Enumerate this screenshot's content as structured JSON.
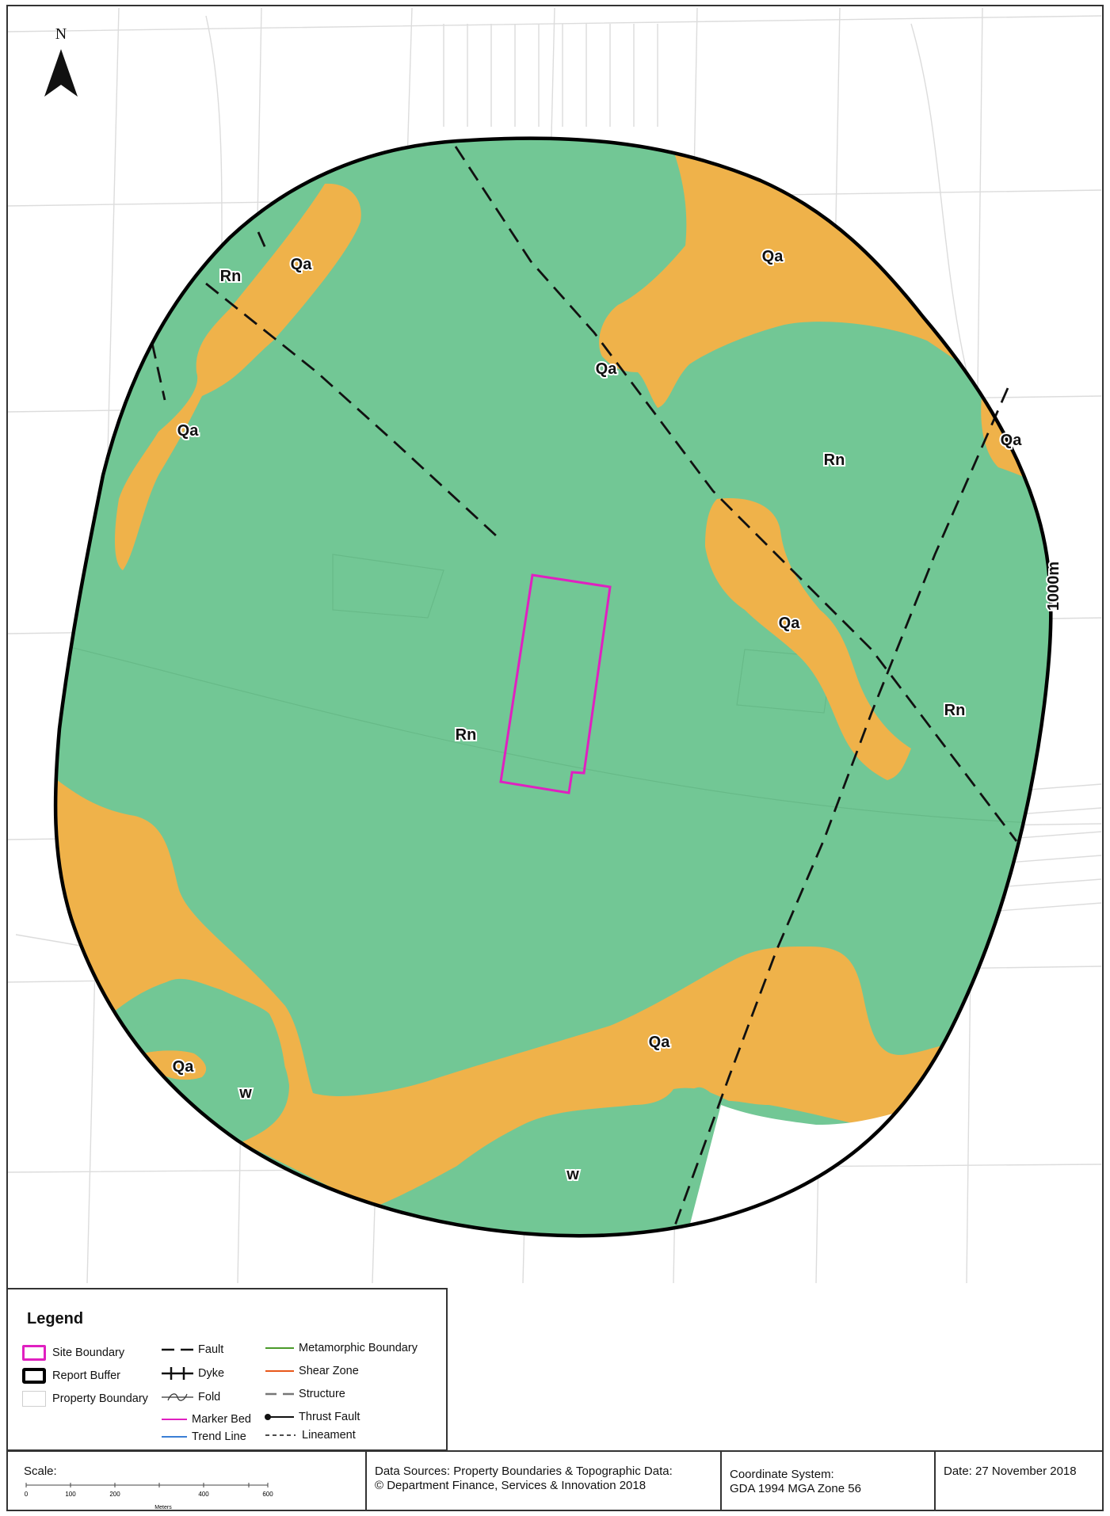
{
  "map": {
    "north_label": "N",
    "buffer_label": "1000m",
    "unit_labels": [
      {
        "id": "qa-nw",
        "text": "Qa"
      },
      {
        "id": "rn-nw",
        "text": "Rn"
      },
      {
        "id": "qa-w",
        "text": "Qa"
      },
      {
        "id": "qa-ne",
        "text": "Qa"
      },
      {
        "id": "qa-center-n",
        "text": "Qa"
      },
      {
        "id": "qa-e",
        "text": "Qa"
      },
      {
        "id": "rn-ne",
        "text": "Rn"
      },
      {
        "id": "qa-center-e",
        "text": "Qa"
      },
      {
        "id": "rn-e",
        "text": "Rn"
      },
      {
        "id": "rn-center",
        "text": "Rn"
      },
      {
        "id": "qa-s",
        "text": "Qa"
      },
      {
        "id": "qa-sw",
        "text": "Qa"
      },
      {
        "id": "w-sw",
        "text": "w"
      },
      {
        "id": "w-s",
        "text": "w"
      }
    ],
    "colors": {
      "unit_rn": "#72c795",
      "unit_qa": "#efb24a",
      "unit_w": "#72c795",
      "site_boundary": "#e020c0",
      "report_buffer": "#000000",
      "property_boundary": "#d8d8d8"
    }
  },
  "legend": {
    "title": "Legend",
    "items": [
      {
        "id": "site-boundary",
        "label": "Site Boundary"
      },
      {
        "id": "report-buffer",
        "label": "Report Buffer"
      },
      {
        "id": "property-boundary",
        "label": "Property Boundary"
      },
      {
        "id": "fault",
        "label": "Fault"
      },
      {
        "id": "dyke",
        "label": "Dyke"
      },
      {
        "id": "fold",
        "label": "Fold"
      },
      {
        "id": "marker-bed",
        "label": "Marker Bed"
      },
      {
        "id": "trend-line",
        "label": "Trend Line"
      },
      {
        "id": "metamorphic-boundary",
        "label": "Metamorphic Boundary"
      },
      {
        "id": "shear-zone",
        "label": "Shear Zone"
      },
      {
        "id": "structure",
        "label": "Structure"
      },
      {
        "id": "thrust-fault",
        "label": "Thrust Fault"
      },
      {
        "id": "lineament",
        "label": "Lineament"
      }
    ],
    "line_colors": {
      "marker_bed": "#e020c0",
      "trend_line": "#3a7fd5",
      "metamorphic_boundary": "#4a9a2a",
      "shear_zone": "#e8581a",
      "structure": "#777777"
    }
  },
  "footer": {
    "scale_label": "Scale:",
    "scale_ticks": [
      "0",
      "100",
      "200",
      "400",
      "600"
    ],
    "scale_units": "Meters",
    "data_sources": [
      "Data Sources: Property Boundaries & Topographic Data:",
      "© Department Finance, Services & Innovation 2018"
    ],
    "coordinate_system": [
      "Coordinate System:",
      "GDA 1994 MGA Zone 56"
    ],
    "date": "Date: 27 November 2018"
  }
}
